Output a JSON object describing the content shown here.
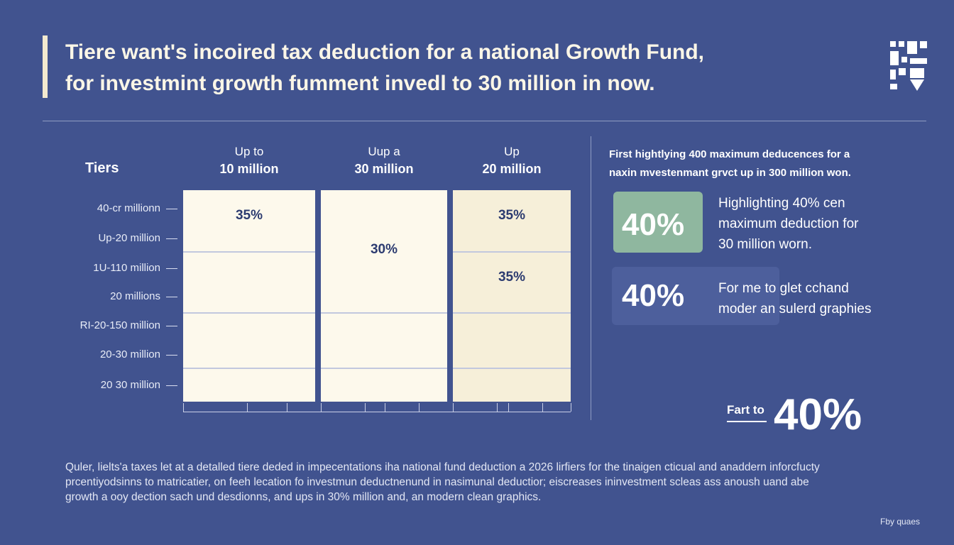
{
  "title": {
    "line1": "Tiere want's incoired tax deduction  for a national Growth Fund,",
    "line2": "for investmint growth fumment invedl to 30 million in now."
  },
  "colors": {
    "background": "#41538f",
    "card_light": "#fdf9ec",
    "card_warm": "#f6efd9",
    "value_text": "#2c3b70",
    "highlight_green": "#8fb79f",
    "highlight_blue": "#4d5f9c"
  },
  "chart_data": {
    "type": "table",
    "title": "Tiers",
    "columns": [
      {
        "line1": "Up to",
        "line2": "10 million"
      },
      {
        "line1": "Uup a",
        "line2": "30 million"
      },
      {
        "line1": "Up",
        "line2": "20 million"
      }
    ],
    "rows": [
      "40-cr millionn",
      "Up-20 million",
      "1U-110 million",
      "20 millions",
      "RI-20-150 million",
      "20-30 million",
      "20 30 million"
    ],
    "cells": [
      {
        "column": 0,
        "row": 0,
        "value": "35%"
      },
      {
        "column": 1,
        "row": 1,
        "value": "30%"
      },
      {
        "column": 2,
        "row": 0,
        "value": "35%"
      },
      {
        "column": 2,
        "row": 2,
        "value": "35%"
      }
    ]
  },
  "side_panel": {
    "intro_line1": "First  hightlying 400 maximum deducences for a",
    "intro_line2": "naxin mvestenmant grvct up in 300 million won.",
    "highlights": [
      {
        "percent": "40%",
        "line1": "Highlighting 40% cen",
        "line2": "maximum deduction for",
        "line3": "30 million worn."
      },
      {
        "percent": "40%",
        "line1": "For me to glet cchand",
        "line2": "moder an sulerd graphies"
      }
    ],
    "fart_label": "Fart to",
    "big_percent": "40%"
  },
  "body_text": {
    "line1": "Quler, lielts'a taxes let at a detalled tiere deded in impecentations iha national fund deduction a 2026 lirfiers for the tinaigen cticual and anaddern inforcfucty",
    "line2": "prcentiyodsinns to matricatier, on feeh lecation fo investmun deductnenund in nasimunal deductior; eiscreases ininvestment scleas ass anoush uand abe",
    "line3": "growth a ooy dection sach und desdionns, and ups in 30% million and, an modern clean graphics."
  },
  "footer": "Fby quaes"
}
